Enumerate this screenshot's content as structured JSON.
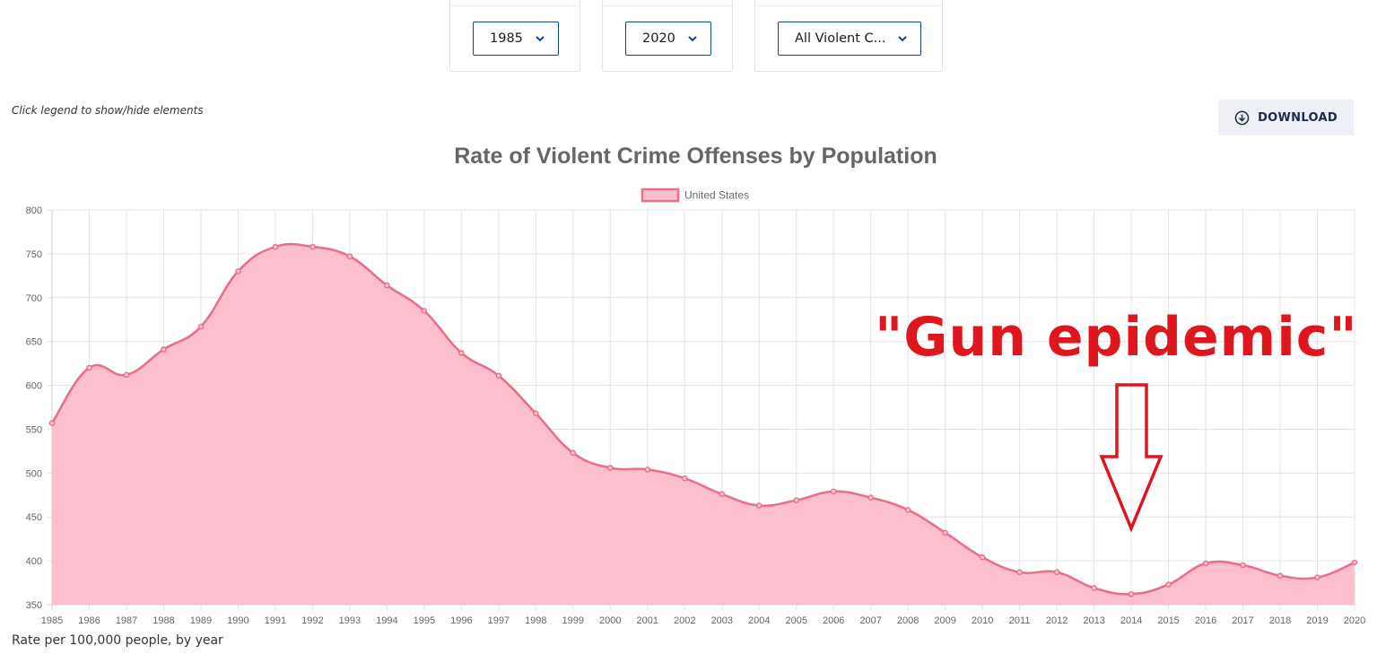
{
  "filters": {
    "start_year": "1985",
    "end_year": "2020",
    "offense": "All Violent C..."
  },
  "hint": "Click legend to show/hide elements",
  "download_label": "DOWNLOAD",
  "annotation": "\"Gun epidemic\"",
  "colors": {
    "line": "#e8708b",
    "fill": "#fdbfcd",
    "annotation": "#e0161f",
    "select_border": "#0b4a8b"
  },
  "chart_data": {
    "type": "area",
    "title": "Rate of Violent Crime Offenses by Population",
    "ylabel": "Rate per 100,000 people, by year",
    "ylim": [
      350,
      800
    ],
    "yticks": [
      800,
      750,
      700,
      650,
      600,
      550,
      500,
      450,
      400,
      350
    ],
    "legend_position": "top-center",
    "grid": true,
    "x": [
      "1985",
      "1986",
      "1987",
      "1988",
      "1989",
      "1990",
      "1991",
      "1992",
      "1993",
      "1994",
      "1995",
      "1996",
      "1997",
      "1998",
      "1999",
      "2000",
      "2001",
      "2002",
      "2003",
      "2004",
      "2005",
      "2006",
      "2007",
      "2008",
      "2009",
      "2010",
      "2011",
      "2012",
      "2013",
      "2014",
      "2015",
      "2016",
      "2017",
      "2018",
      "2019",
      "2020"
    ],
    "series": [
      {
        "name": "United States",
        "values": [
          557,
          620,
          612,
          641,
          667,
          730,
          758,
          758,
          747,
          714,
          685,
          637,
          611,
          568,
          523,
          506,
          504,
          494,
          476,
          463,
          469,
          479,
          472,
          458,
          432,
          404,
          387,
          387,
          369,
          362,
          373,
          397,
          395,
          383,
          381,
          398
        ]
      }
    ]
  }
}
